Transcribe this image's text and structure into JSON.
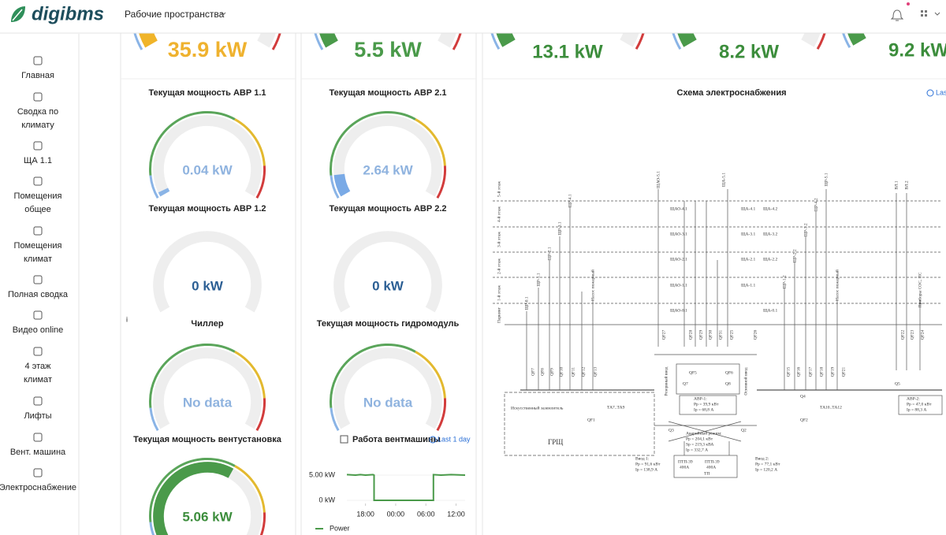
{
  "header": {
    "logo": "digibms",
    "workspace": "Рабочие пространства"
  },
  "sidebar": {
    "items": [
      [
        "Главная"
      ],
      [
        "Сводка по",
        "климату"
      ],
      [
        "ЩА 1.1"
      ],
      [
        "Помещения",
        "общее"
      ],
      [
        "Помещения",
        "климат"
      ],
      [
        "Полная сводка"
      ],
      [
        "Видео online"
      ],
      [
        "4 этаж",
        "климат"
      ],
      [
        "Лифты"
      ],
      [
        "Вент. машина"
      ],
      [
        "Электроснабжение"
      ]
    ]
  },
  "top_gauges": [
    "35.9 kW",
    "5.5 kW",
    "13.1 kW",
    "8.2 kW",
    "9.2 kW"
  ],
  "panels": [
    {
      "title": "Текущая мощность АВР 1.1",
      "value": "0.04 kW"
    },
    {
      "title": "Текущая мощность АВР 2.1",
      "value": "2.64 kW"
    },
    {
      "title": "Текущая мощность АВР 1.2",
      "value": "0 kW"
    },
    {
      "title": "Текущая мощность АВР 2.2",
      "value": "0 kW"
    },
    {
      "title": "Чиллер",
      "value": "No data"
    },
    {
      "title": "Текущая мощность гидромодуль",
      "value": "No data"
    },
    {
      "title": "Текущая мощность вентустановка",
      "value": "5.06 kW"
    }
  ],
  "info_marker": "i",
  "vent_chart": {
    "type": "line",
    "title": "Работа вентмашины",
    "range_label": "Last 1 day",
    "x": [
      14.3,
      16,
      17,
      18,
      19.5,
      19.7,
      19.7,
      25,
      31.5,
      31.5,
      33,
      35,
      37.8
    ],
    "series": [
      {
        "name": "Power",
        "color": "#4a9a4a",
        "values": [
          5.1,
          5.0,
          5.1,
          5.0,
          5.1,
          5.0,
          0,
          0,
          0,
          5.1,
          5.0,
          5.1,
          5.0
        ]
      }
    ],
    "xlim": [
      14.3,
      37.8
    ],
    "ylim": [
      0,
      6.5
    ],
    "xticks": [
      {
        "value": 18,
        "label": "18:00"
      },
      {
        "value": 24,
        "label": "00:00"
      },
      {
        "value": 30,
        "label": "06:00"
      },
      {
        "value": 36,
        "label": "12:00"
      }
    ],
    "yticks": [
      {
        "value": 5,
        "label": "5.00 kW"
      },
      {
        "value": 0,
        "label": "0 kW"
      }
    ]
  },
  "scheme": {
    "title": "Схема электроснабжения",
    "range_label": "Las",
    "labels": [
      "5-й этаж",
      "4-й этаж",
      "3-й этаж",
      "2-й этаж",
      "1-й этаж",
      "Паркинг",
      "ЩР-0.1",
      "ЩР-1.1",
      "ЩР-2.1",
      "ЩР-3.1",
      "ЩР-4.1",
      "Насос пожарный",
      "ЩАО-5.1",
      "ЩАО-4.1",
      "ЩАО-3.1",
      "ЩАО-2.1",
      "ЩАО-1.1",
      "ЩАО-0.1",
      "ЩА-5.1",
      "ЩА-4.1",
      "ЩА-4.2",
      "ЩА-3.1",
      "ЩА-3.2",
      "ЩА-2.1",
      "ЩА-2.2",
      "ЩА-1.1",
      "ЩА-0.1",
      "ЩР-5.1",
      "ЩР-4.2",
      "ЩР-3.2",
      "ЩР-2.2",
      "ЩР-1.2",
      "Насос пожарный",
      "ВЛ.1",
      "ВЛ.2",
      "Приборы СОС, ПС",
      "QF7",
      "QF8",
      "QF9",
      "QF10",
      "QF11",
      "QF12",
      "QF13",
      "QF15",
      "QF16",
      "QF17",
      "QF18",
      "QF19",
      "QF21",
      "QF27",
      "QF28",
      "QF29",
      "QF30",
      "QF31",
      "QF25",
      "QF26",
      "QF22",
      "QF23",
      "QF24",
      "АВР-1:",
      "Рр = 39,9 кВт",
      "Iр = 68,8 А",
      "АВР-2:",
      "Рр = 47,0 кВт",
      "Iр = 88,3 А",
      "Аварийный режим:",
      "Рр = 204,1 кВт",
      "Sр = 219,3 кВА",
      "Iр = 332,7 А",
      "Ввод 1:",
      "Рр = 91,6 кВт",
      "Iр = 138,9 А",
      "ПТП-39",
      "400А",
      "ПТП-39",
      "400А",
      "ТП",
      "Ввод 2:",
      "Рр = 77,1 кВт",
      "Iр = 120,2 А",
      "ГРЩ",
      "ТА7..ТА9",
      "ТА10..ТА12",
      "QF1",
      "QF2",
      "Q3",
      "Q2",
      "Q7",
      "Q8",
      "QF5",
      "QF6",
      "Q4",
      "Q5",
      "Искусственный заземлитель",
      "Резервный ввод",
      "Основной ввод"
    ]
  }
}
